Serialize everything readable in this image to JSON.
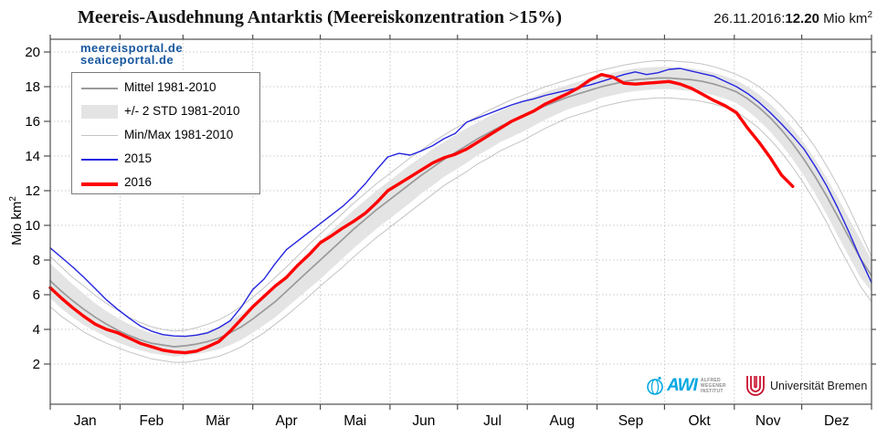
{
  "header": {
    "title": "Meereis-Ausdehnung Antarktis (Meereiskonzentration >15%)",
    "date_prefix": "26.11.2016:",
    "date_value": "12.20",
    "date_unit": "Mio km",
    "date_unit_sup": "2"
  },
  "watermark": {
    "line1": "meereisportal.de",
    "line2": "seaiceportal.de"
  },
  "axis": {
    "ylabel": "Mio km",
    "ylabel_sup": "2"
  },
  "legend": {
    "items": [
      {
        "label": "Mittel 1981-2010"
      },
      {
        "label": "+/- 2 STD 1981-2010"
      },
      {
        "label": "Min/Max 1981-2010"
      },
      {
        "label": "2015"
      },
      {
        "label": "2016"
      }
    ]
  },
  "logos": {
    "awi": {
      "acronym": "AWI",
      "line1": "ALFRED",
      "line2": "WEGENER",
      "line3": "INSTITUT"
    },
    "bremen": {
      "label": "Universität Bremen"
    }
  },
  "colors": {
    "mean": "#9a9a9a",
    "band": "#e4e4e4",
    "minmax": "#c4c4c4",
    "y2015": "#2525e0",
    "y2016": "#ff0000",
    "grid": "#c9c9c9",
    "frame": "#4d4d4d",
    "watermark": "#15569e",
    "awi_cyan": "#00a7e1",
    "bremen_red": "#c8102e"
  },
  "chart_data": {
    "type": "line",
    "title": "Meereis-Ausdehnung Antarktis (Meereiskonzentration >15%)",
    "ylabel": "Mio km²",
    "latest": {
      "date": "26.11.2016",
      "value": 12.2,
      "unit": "Mio km²"
    },
    "ylim": [
      -0.3,
      20.7
    ],
    "yticks": [
      2,
      4,
      6,
      8,
      10,
      12,
      14,
      16,
      18,
      20
    ],
    "grid": true,
    "legend_position": "upper-left",
    "months": [
      "Jan",
      "Feb",
      "Mär",
      "Apr",
      "Mai",
      "Jun",
      "Jul",
      "Aug",
      "Sep",
      "Okt",
      "Nov",
      "Dez"
    ],
    "month_boundary_days": [
      0,
      31,
      59,
      90,
      120,
      151,
      181,
      212,
      243,
      273,
      304,
      334,
      365
    ],
    "days": [
      0,
      5,
      10,
      15,
      20,
      25,
      30,
      35,
      40,
      45,
      50,
      55,
      60,
      65,
      70,
      75,
      80,
      85,
      90,
      95,
      100,
      105,
      110,
      115,
      120,
      125,
      130,
      135,
      140,
      145,
      150,
      155,
      160,
      165,
      170,
      175,
      180,
      185,
      190,
      195,
      200,
      205,
      210,
      215,
      220,
      225,
      230,
      235,
      240,
      245,
      250,
      255,
      260,
      265,
      270,
      275,
      280,
      285,
      290,
      295,
      300,
      305,
      310,
      315,
      320,
      325,
      330,
      335,
      340,
      345,
      350,
      355,
      360,
      365
    ],
    "band": {
      "name": "+/- 2 STD 1981-2010",
      "upper": [
        7.8,
        7.2,
        6.6,
        6.05,
        5.5,
        5.05,
        4.65,
        4.3,
        4.0,
        3.78,
        3.67,
        3.57,
        3.62,
        3.73,
        3.9,
        4.15,
        4.5,
        4.9,
        5.4,
        5.95,
        6.5,
        7.15,
        7.8,
        8.45,
        9.1,
        9.7,
        10.3,
        10.9,
        11.45,
        12.0,
        12.5,
        13.0,
        13.5,
        13.95,
        14.4,
        14.8,
        15.2,
        15.6,
        15.95,
        16.3,
        16.6,
        16.9,
        17.2,
        17.45,
        17.7,
        17.9,
        18.1,
        18.3,
        18.5,
        18.65,
        18.8,
        18.95,
        19.05,
        19.1,
        19.15,
        19.15,
        19.1,
        19.05,
        18.95,
        18.8,
        18.6,
        18.35,
        18.0,
        17.55,
        17.0,
        16.35,
        15.6,
        14.75,
        13.8,
        12.75,
        11.6,
        10.4,
        9.2,
        8.0
      ],
      "lower": [
        5.8,
        5.2,
        4.7,
        4.25,
        3.9,
        3.55,
        3.25,
        3.0,
        2.8,
        2.62,
        2.53,
        2.43,
        2.48,
        2.57,
        2.7,
        2.85,
        3.1,
        3.4,
        3.8,
        4.25,
        4.7,
        5.25,
        5.8,
        6.35,
        6.9,
        7.5,
        8.1,
        8.7,
        9.25,
        9.8,
        10.3,
        10.8,
        11.3,
        11.85,
        12.3,
        12.8,
        13.2,
        13.6,
        14.05,
        14.4,
        14.8,
        15.1,
        15.4,
        15.75,
        16.1,
        16.4,
        16.7,
        16.9,
        17.1,
        17.35,
        17.5,
        17.65,
        17.75,
        17.8,
        17.85,
        17.85,
        17.8,
        17.75,
        17.65,
        17.5,
        17.3,
        17.05,
        16.6,
        16.05,
        15.4,
        14.65,
        13.8,
        12.85,
        11.8,
        10.65,
        9.4,
        8.2,
        7.0,
        6.2
      ]
    },
    "minmax": {
      "name": "Min/Max 1981-2010",
      "max": [
        8.2,
        7.6,
        7.0,
        6.5,
        5.95,
        5.5,
        5.1,
        4.7,
        4.4,
        4.15,
        4.0,
        3.9,
        3.95,
        4.1,
        4.3,
        4.55,
        4.9,
        5.35,
        5.85,
        6.4,
        7.0,
        7.6,
        8.25,
        8.9,
        9.5,
        10.1,
        10.7,
        11.3,
        11.85,
        12.4,
        12.9,
        13.4,
        13.9,
        14.35,
        14.8,
        15.2,
        15.6,
        15.95,
        16.3,
        16.65,
        16.95,
        17.25,
        17.5,
        17.75,
        18.0,
        18.2,
        18.4,
        18.6,
        18.8,
        18.95,
        19.1,
        19.25,
        19.35,
        19.45,
        19.5,
        19.5,
        19.45,
        19.4,
        19.3,
        19.15,
        18.95,
        18.7,
        18.4,
        18.0,
        17.5,
        16.9,
        16.2,
        15.4,
        14.5,
        13.45,
        12.3,
        11.0,
        9.6,
        8.2
      ],
      "min": [
        5.3,
        4.75,
        4.3,
        3.85,
        3.5,
        3.2,
        2.95,
        2.7,
        2.5,
        2.3,
        2.2,
        2.1,
        2.1,
        2.2,
        2.3,
        2.45,
        2.7,
        3.0,
        3.4,
        3.8,
        4.3,
        4.8,
        5.35,
        5.9,
        6.5,
        7.05,
        7.6,
        8.2,
        8.75,
        9.3,
        9.8,
        10.3,
        10.8,
        11.3,
        11.8,
        12.3,
        12.7,
        13.1,
        13.55,
        13.9,
        14.3,
        14.6,
        14.9,
        15.25,
        15.6,
        15.9,
        16.2,
        16.4,
        16.6,
        16.85,
        17.0,
        17.15,
        17.25,
        17.3,
        17.35,
        17.35,
        17.3,
        17.25,
        17.15,
        17.0,
        16.8,
        16.55,
        16.1,
        15.6,
        14.95,
        14.2,
        13.35,
        12.4,
        11.35,
        10.2,
        8.9,
        7.7,
        6.5,
        5.6
      ]
    },
    "series": [
      {
        "name": "Mittel 1981-2010",
        "color": "#9a9a9a",
        "width": 1.7,
        "values": [
          6.8,
          6.2,
          5.65,
          5.15,
          4.7,
          4.3,
          3.95,
          3.65,
          3.4,
          3.2,
          3.1,
          3.0,
          3.05,
          3.15,
          3.3,
          3.5,
          3.8,
          4.15,
          4.6,
          5.1,
          5.6,
          6.2,
          6.8,
          7.4,
          8.0,
          8.6,
          9.2,
          9.8,
          10.35,
          10.9,
          11.4,
          11.9,
          12.4,
          12.9,
          13.35,
          13.8,
          14.2,
          14.6,
          15.0,
          15.35,
          15.7,
          16.0,
          16.3,
          16.6,
          16.9,
          17.15,
          17.4,
          17.6,
          17.8,
          18.0,
          18.15,
          18.3,
          18.4,
          18.45,
          18.5,
          18.5,
          18.45,
          18.4,
          18.3,
          18.15,
          17.95,
          17.7,
          17.3,
          16.8,
          16.2,
          15.5,
          14.7,
          13.8,
          12.8,
          11.7,
          10.5,
          9.3,
          8.1,
          7.1
        ]
      },
      {
        "name": "2015",
        "color": "#2525e0",
        "width": 1.4,
        "values": [
          8.7,
          8.15,
          7.6,
          7.0,
          6.35,
          5.7,
          5.15,
          4.65,
          4.2,
          3.9,
          3.7,
          3.62,
          3.6,
          3.67,
          3.8,
          4.1,
          4.5,
          5.3,
          6.3,
          6.9,
          7.8,
          8.6,
          9.1,
          9.6,
          10.1,
          10.6,
          11.1,
          11.7,
          12.4,
          13.2,
          13.95,
          14.15,
          14.05,
          14.3,
          14.6,
          15.0,
          15.3,
          15.95,
          16.2,
          16.45,
          16.7,
          16.95,
          17.15,
          17.3,
          17.5,
          17.65,
          17.8,
          17.95,
          18.1,
          18.3,
          18.5,
          18.7,
          18.85,
          18.7,
          18.8,
          19.0,
          19.05,
          18.9,
          18.75,
          18.6,
          18.3,
          18.0,
          17.6,
          17.1,
          16.5,
          15.85,
          15.15,
          14.4,
          13.4,
          12.3,
          11.0,
          9.6,
          8.1,
          6.7
        ]
      },
      {
        "name": "2016",
        "color": "#ff0000",
        "width": 3.4,
        "values": [
          6.4,
          5.8,
          5.25,
          4.75,
          4.3,
          4.0,
          3.8,
          3.5,
          3.2,
          3.0,
          2.8,
          2.7,
          2.65,
          2.75,
          3.0,
          3.3,
          3.9,
          4.6,
          5.3,
          5.9,
          6.5,
          7.0,
          7.7,
          8.3,
          9.0,
          9.4,
          9.85,
          10.25,
          10.7,
          11.3,
          12.0,
          12.4,
          12.8,
          13.2,
          13.6,
          13.9,
          14.1,
          14.4,
          14.8,
          15.2,
          15.6,
          16.0,
          16.3,
          16.6,
          17.0,
          17.3,
          17.6,
          17.95,
          18.4,
          18.7,
          18.55,
          18.2,
          18.15,
          18.2,
          18.25,
          18.3,
          18.15,
          17.9,
          17.55,
          17.2,
          16.9,
          16.5,
          15.6,
          14.8,
          13.9,
          12.9,
          12.25,
          null,
          null,
          null,
          null,
          null,
          null,
          null
        ]
      }
    ]
  }
}
